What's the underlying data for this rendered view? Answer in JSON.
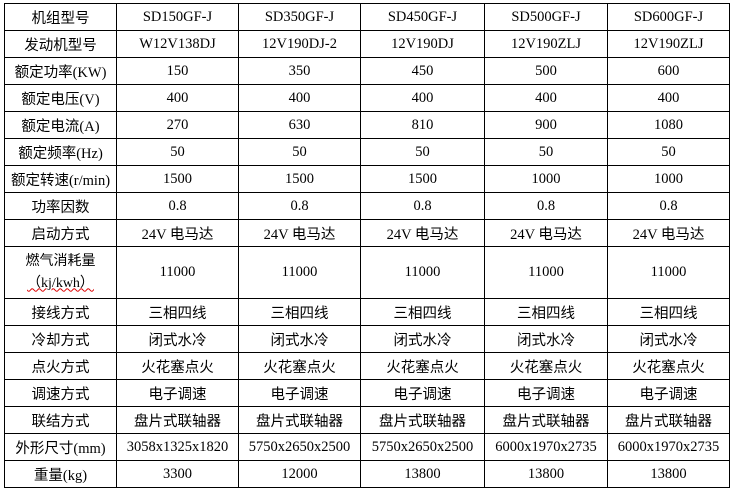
{
  "table": {
    "rows": [
      {
        "label": "机组型号",
        "cells": [
          "SD150GF-J",
          "SD350GF-J",
          "SD450GF-J",
          "SD500GF-J",
          "SD600GF-J"
        ]
      },
      {
        "label": "发动机型号",
        "cells": [
          "W12V138DJ",
          "12V190DJ-2",
          "12V190DJ",
          "12V190ZLJ",
          "12V190ZLJ"
        ]
      },
      {
        "label": "额定功率(KW)",
        "cells": [
          "150",
          "350",
          "450",
          "500",
          "600"
        ]
      },
      {
        "label": "额定电压(V)",
        "cells": [
          "400",
          "400",
          "400",
          "400",
          "400"
        ]
      },
      {
        "label": "额定电流(A)",
        "cells": [
          "270",
          "630",
          "810",
          "900",
          "1080"
        ]
      },
      {
        "label": "额定频率(Hz)",
        "cells": [
          "50",
          "50",
          "50",
          "50",
          "50"
        ]
      },
      {
        "label": "额定转速(r/min)",
        "cells": [
          "1500",
          "1500",
          "1500",
          "1000",
          "1000"
        ]
      },
      {
        "label": "功率因数",
        "cells": [
          "0.8",
          "0.8",
          "0.8",
          "0.8",
          "0.8"
        ]
      },
      {
        "label": "启动方式",
        "cells": [
          "24V 电马达",
          "24V 电马达",
          "24V 电马达",
          "24V 电马达",
          "24V 电马达"
        ]
      },
      {
        "label": "燃气消耗量",
        "label_unit": "（kj/kwh）",
        "cells": [
          "11000",
          "11000",
          "11000",
          "11000",
          "11000"
        ]
      },
      {
        "label": "接线方式",
        "cells": [
          "三相四线",
          "三相四线",
          "三相四线",
          "三相四线",
          "三相四线"
        ]
      },
      {
        "label": "冷却方式",
        "cells": [
          "闭式水冷",
          "闭式水冷",
          "闭式水冷",
          "闭式水冷",
          "闭式水冷"
        ]
      },
      {
        "label": "点火方式",
        "cells": [
          "火花塞点火",
          "火花塞点火",
          "火花塞点火",
          "火花塞点火",
          "火花塞点火"
        ]
      },
      {
        "label": "调速方式",
        "cells": [
          "电子调速",
          "电子调速",
          "电子调速",
          "电子调速",
          "电子调速"
        ]
      },
      {
        "label": "联结方式",
        "cells": [
          "盘片式联轴器",
          "盘片式联轴器",
          "盘片式联轴器",
          "盘片式联轴器",
          "盘片式联轴器"
        ]
      },
      {
        "label": "外形尺寸(mm)",
        "cells": [
          "3058x1325x1820",
          "5750x2650x2500",
          "5750x2650x2500",
          "6000x1970x2735",
          "6000x1970x2735"
        ]
      },
      {
        "label": "重量(kg)",
        "cells": [
          "3300",
          "12000",
          "13800",
          "13800",
          "13800"
        ]
      }
    ]
  }
}
